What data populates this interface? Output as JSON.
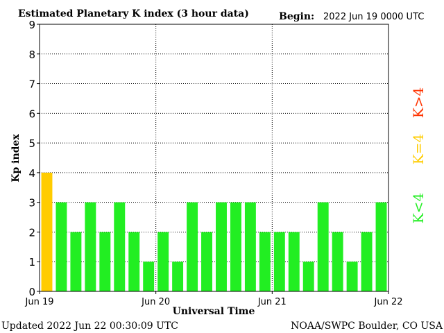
{
  "chart_data": {
    "type": "bar",
    "title": "Estimated Planetary K index (3 hour data)",
    "begin_label": "Begin:",
    "begin_value": "2022 Jun 19 0000 UTC",
    "ylabel": "Kp index",
    "xlabel": "Universal Time",
    "ylim": [
      0,
      9
    ],
    "yticks": [
      "0",
      "1",
      "2",
      "3",
      "4",
      "5",
      "6",
      "7",
      "8",
      "9"
    ],
    "xticks": [
      "Jun 19",
      "Jun 20",
      "Jun 21",
      "Jun 22"
    ],
    "grid": true,
    "values": [
      4,
      3,
      2,
      3,
      2,
      3,
      2,
      1,
      2,
      1,
      3,
      2,
      3,
      3,
      3,
      2,
      2,
      2,
      1,
      3,
      2,
      1,
      2,
      3
    ],
    "legend": {
      "low": {
        "label": "K<4",
        "color": "#22ee22"
      },
      "mid": {
        "label": "K=4",
        "color": "#ffcc00"
      },
      "high": {
        "label": "K>4",
        "color": "#ff3300"
      }
    },
    "colors": {
      "low": "#22ee22",
      "mid": "#ffcc00",
      "high": "#ff3300"
    }
  },
  "footer": {
    "updated": "Updated 2022 Jun 22 00:30:09 UTC",
    "source": "NOAA/SWPC Boulder, CO USA"
  }
}
